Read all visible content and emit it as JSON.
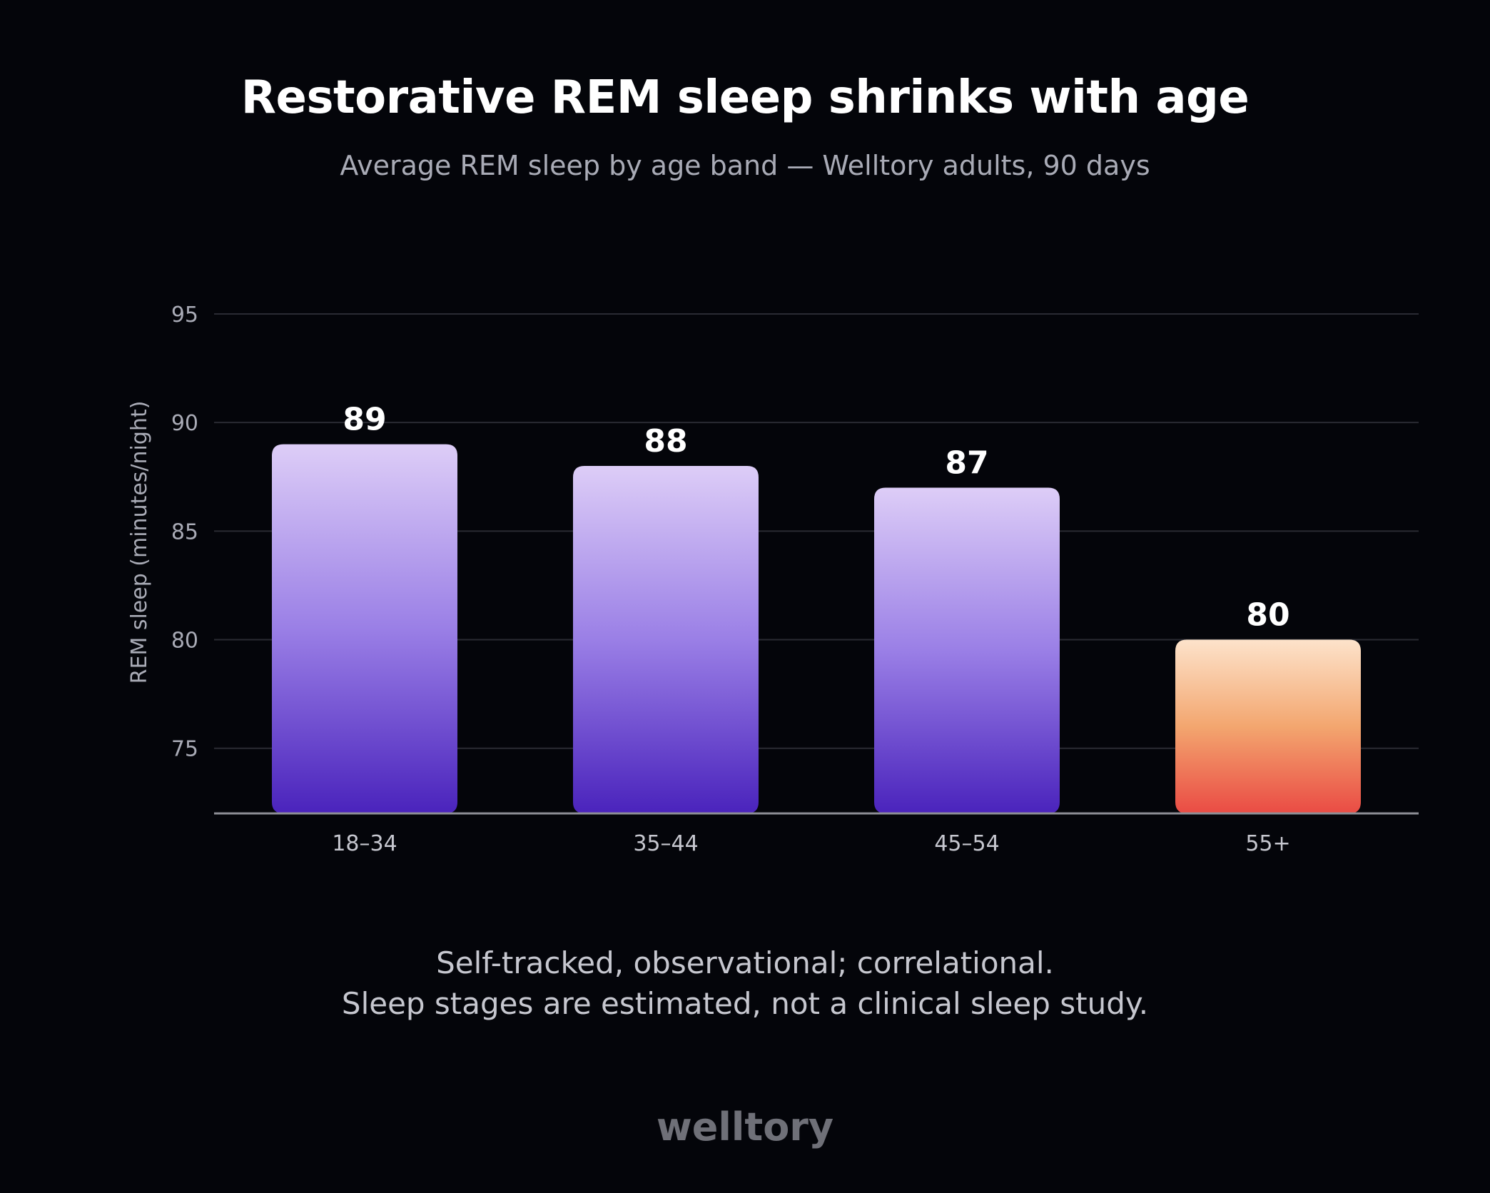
{
  "chart_data": {
    "type": "bar",
    "title": "Restorative REM sleep shrinks with age",
    "subtitle": "Average REM sleep by age band — Welltory adults, 90 days",
    "xlabel": "",
    "ylabel": "REM sleep (minutes/night)",
    "categories": [
      "18–34",
      "35–44",
      "45–54",
      "55+"
    ],
    "values": [
      89,
      88,
      87,
      80
    ],
    "value_labels": [
      "89",
      "88",
      "87",
      "80"
    ],
    "yticks": [
      75,
      80,
      85,
      90,
      95
    ],
    "ylim": [
      72,
      95
    ],
    "grid": true,
    "colors": {
      "bar_top": "#ddcdf7",
      "bar_mid": "#9a7fe6",
      "bar_bottom": "#4a23bc",
      "highlight_top": "#fde3cb",
      "highlight_mid": "#f3a66f",
      "highlight_bottom": "#ea4b44",
      "highlight_category": "55+"
    }
  },
  "notes": {
    "line1": "Self-tracked, observational; correlational.",
    "line2": "Sleep stages are estimated, not a clinical sleep study."
  },
  "brand": "welltory"
}
